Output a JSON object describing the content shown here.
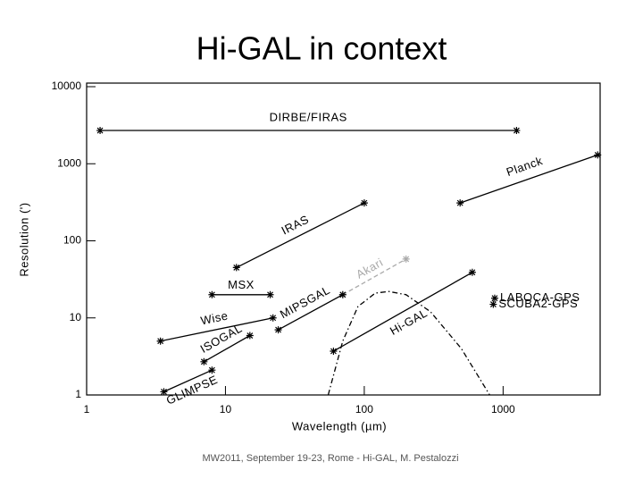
{
  "chart_data": {
    "type": "line",
    "title": "Hi-GAL in context",
    "footer": "MW2011, September 19-23, Rome - Hi-GAL, M. Pestalozzi",
    "xlabel": "Wavelength (µm)",
    "ylabel": "Resolution (')",
    "xlog": true,
    "ylog": true,
    "xlim": [
      1,
      5000
    ],
    "ylim": [
      1,
      10000
    ],
    "xticks": [
      1,
      10,
      100,
      1000
    ],
    "yticks": [
      1,
      10,
      100,
      1000,
      10000
    ],
    "series": [
      {
        "name": "DIRBE/FIRAS",
        "color": "#000000",
        "x": [
          1.25,
          1250
        ],
        "values": [
          2700,
          2700
        ]
      },
      {
        "name": "Planck",
        "color": "#000000",
        "x": [
          490,
          4800
        ],
        "values": [
          310,
          1300
        ]
      },
      {
        "name": "IRAS",
        "color": "#000000",
        "x": [
          12,
          100
        ],
        "values": [
          45,
          310
        ]
      },
      {
        "name": "Akari",
        "color": "#aaaaaa",
        "dashed": true,
        "x": [
          70,
          200
        ],
        "values": [
          20,
          58
        ]
      },
      {
        "name": "MSX",
        "color": "#000000",
        "x": [
          8,
          21
        ],
        "values": [
          20,
          20
        ]
      },
      {
        "name": "MIPSGAL",
        "color": "#000000",
        "x": [
          24,
          70
        ],
        "values": [
          7,
          20
        ]
      },
      {
        "name": "Wise",
        "color": "#000000",
        "x": [
          3.4,
          22
        ],
        "values": [
          5,
          10
        ]
      },
      {
        "name": "ISOGAL",
        "color": "#000000",
        "x": [
          7,
          15
        ],
        "values": [
          2.7,
          5.9
        ]
      },
      {
        "name": "GLIMPSE",
        "color": "#000000",
        "x": [
          3.6,
          8
        ],
        "values": [
          1.1,
          2.1
        ]
      },
      {
        "name": "Hi-GAL",
        "color": "#000000",
        "x": [
          60,
          600
        ],
        "values": [
          3.7,
          39
        ]
      },
      {
        "name": "LABOCA-GPS",
        "color": "#000000",
        "markers_only": true,
        "x": [
          870
        ],
        "values": [
          18
        ]
      },
      {
        "name": "SCUBA2-GPS",
        "color": "#000000",
        "markers_only": true,
        "x": [
          850
        ],
        "values": [
          15
        ]
      },
      {
        "color": "#000000",
        "dashdot": true,
        "no_markers": true,
        "x": [
          55,
          70,
          90,
          120,
          150,
          200,
          300,
          500,
          800
        ],
        "values": [
          1,
          5,
          14,
          21,
          22,
          20,
          12,
          4,
          1
        ]
      }
    ]
  }
}
